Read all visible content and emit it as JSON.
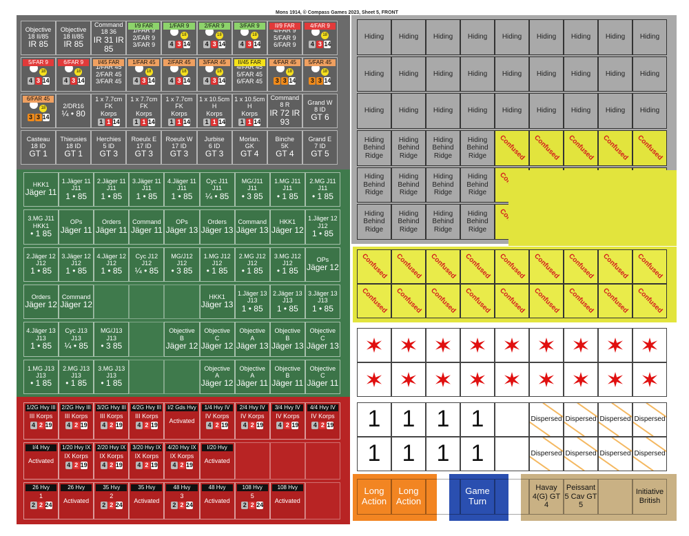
{
  "header": "Mons 1914, © Compass Games 2023, Sheet 5, FRONT",
  "grey_rows": [
    [
      "Objective|18 II/85|IR 85",
      "Objective|18 II/85|IR 85",
      "Command|18 36|IR 31 IR 85",
      "I/9 FAR|1/FAR 9 2/FAR 9 3/FAR 9|",
      "1/FAR 9|18|4 3 14",
      "2/FAR 9|18|4 3 14",
      "3/FAR 9|18|4 3 14",
      "II/9 FAR|4/FAR 9 5/FAR 9 6/FAR 9|",
      "4/FAR 9|18|4 3 14"
    ],
    [
      "5/FAR 9|18|4 3 14",
      "6/FAR 9|18|4 3 14",
      "I/45 FAR|1/FAR 45 2/FAR 45 3/FAR 45|",
      "1/FAR 45|18|4 3 14",
      "2/FAR 45|18|4 3 14",
      "3/FAR 45|18|4 3 14",
      "II/45 FAR|4/FAR 45 5/FAR 45 6/FAR 45|",
      "4/FAR 45|18|3 3 14",
      "5/FAR 45|18|3 3 14"
    ],
    [
      "6/FAR 45|18|3 3 14",
      "2/DR16||¼ • 80",
      "1 x 7.7cm FK|Korps|1 1 14",
      "1 x 7.7cm FK|Korps|1 1 14",
      "1 x 7.7cm FK|Korps|1 1 14",
      "1 x 10.5cm H|Korps|1 1 14",
      "1 x 10.5cm H|Korps|1 1 14",
      "Command|8 R|IR 72 IR 93",
      "Grand W|8 ID|GT 6"
    ],
    [
      "Casteau|18 ID|GT 1",
      "Thieusies|18 ID|GT 1",
      "Herchies|5 ID|GT 3",
      "Roeulx E|17 ID|GT 3",
      "Roeulx W|17 ID|GT 3",
      "Jurbise|6 ID|GT 3",
      "Morlan.|GK|GT 4",
      "Binche|5K|GT 4",
      "Grand E|7 ID|GT 5"
    ]
  ],
  "green_rows": [
    [
      "|HKK1|Jäger 11",
      "1.Jäger 11|J11|1 • 85",
      "2.Jäger 11|J11|1 • 85",
      "3.Jäger 11|J11|1 • 85",
      "4.Jäger 11|J11|1 • 85",
      "Cyc J11|J11|¼ • 85",
      "MG/J11|J11|• 3 85",
      "1.MG J11|J11|• 1 85",
      "2.MG J11|J11|• 1 85"
    ],
    [
      "3.MG J11|HKK1|• 1 85",
      "OPs||Jäger 11",
      "Orders||Jäger 11",
      "Command||Jäger 11",
      "OPs||Jäger 13",
      "Orders||Jäger 13",
      "Command||Jäger 13",
      "|HKK1|Jäger 12",
      "1.Jäger 12|J12|1 • 85"
    ],
    [
      "2.Jäger 12|J12|1 • 85",
      "3.Jäger 12|J12|1 • 85",
      "4.Jäger 12|J12|1 • 85",
      "Cyc J12|J12|¼ • 85",
      "MG/J12|J12|• 3 85",
      "1.MG J12|J12|• 1 85",
      "2.MG J12|J12|• 1 85",
      "3.MG J12|J12|• 1 85",
      "OPs||Jäger 12"
    ],
    [
      "Orders||Jäger 12",
      "Command||Jäger 12",
      "",
      "",
      "",
      "|HKK1|Jäger 13",
      "1.Jäger 13|J13|1 • 85",
      "2.Jäger 13|J13|1 • 85",
      "3.Jäger 13|J13|1 • 85"
    ],
    [
      "4.Jäger 13|J13|1 • 85",
      "Cyc J13|J13|¼ • 85",
      "MG/J13|J13|• 3 85",
      "",
      "Objective|B|Jäger 12",
      "Objective|C|Jäger 12",
      "Objective|A|Jäger 13",
      "Objective|B|Jäger 13",
      "Objective|C|Jäger 13"
    ],
    [
      "1.MG J13|J13|• 1 85",
      "2.MG J13|J13|• 1 85",
      "3.MG J13|J13|• 1 85",
      "",
      "",
      "Objective|A|Jäger 12",
      "Objective|A|Jäger 11",
      "Objective|B|Jäger 11",
      "Objective|C|Jäger 11"
    ]
  ],
  "red_rows": [
    [
      "1/2G Hvy III|III Korps|4 2 19",
      "2/2G Hvy III|III Korps|4 2 19",
      "3/2G Hvy III|III Korps|4 2 19",
      "4/2G Hvy III|III Korps|4 2 19",
      "I/2 Gds Hvy|Activated|",
      "1/4 Hvy IV|IV Korps|4 2 19",
      "2/4 Hvy IV|IV Korps|4 2 19",
      "3/4 Hvy IV|IV Korps|4 2 19",
      "4/4 Hvy IV|IV Korps|4 2 19"
    ],
    [
      "I/4 Hvy|Activated|",
      "1/20 Hvy IX|IX Korps|4 2 19",
      "2/20 Hvy IX|IX Korps|4 2 19",
      "3/20 Hvy IX|IX Korps|4 2 19",
      "4/20 Hvy IX|IX Korps|4 2 19",
      "I/20 Hvy|Activated|",
      "",
      "",
      ""
    ],
    [
      "26 Hvy|1|2 2 24",
      "26 Hvy|Activated|",
      "35 Hvy|2|2 2 24",
      "35 Hvy|Activated|",
      "48 Hvy|3|2 2 24",
      "48 Hvy|Activated|",
      "108 Hvy|5|2 2 24",
      "108 Hvy|Activated|",
      ""
    ]
  ],
  "right": {
    "hiding": "Hiding",
    "hiding_ridge": "Hiding Behind Ridge",
    "confused": "Confused",
    "one": "1",
    "dispersed": "Dispersed",
    "bottom": [
      "Long Action",
      "Long Action",
      "",
      "Game Turn",
      "",
      "Havay 4(G) GT 4",
      "Peissant 5 Cav GT 5",
      "",
      "Initiative British"
    ]
  }
}
